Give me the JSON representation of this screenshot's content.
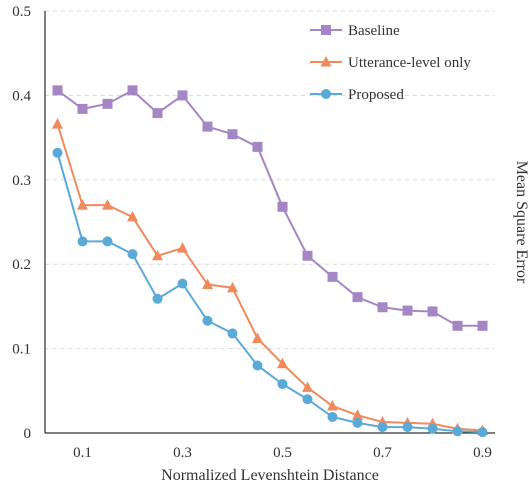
{
  "chart_data": {
    "type": "line",
    "xlabel": "Normalized Levenshtein Distance",
    "ylabel": "Mean Square Error",
    "x": [
      0.05,
      0.1,
      0.15,
      0.2,
      0.25,
      0.3,
      0.35,
      0.4,
      0.45,
      0.5,
      0.55,
      0.6,
      0.65,
      0.7,
      0.75,
      0.8,
      0.85,
      0.9
    ],
    "xlim": [
      0.025,
      0.925
    ],
    "ylim": [
      0,
      0.5
    ],
    "xticks": [
      "0.1",
      "0.3",
      "0.5",
      "0.7",
      "0.9"
    ],
    "xtick_values": [
      0.1,
      0.3,
      0.5,
      0.7,
      0.9
    ],
    "yticks": [
      "0",
      "0.1",
      "0.2",
      "0.3",
      "0.4",
      "0.5"
    ],
    "ytick_values": [
      0,
      0.1,
      0.2,
      0.3,
      0.4,
      0.5
    ],
    "grid": "horizontal dashed",
    "legend_position": "top-right",
    "series": [
      {
        "name": "Baseline",
        "marker": "square",
        "color": "#a586c4",
        "values": [
          0.406,
          0.384,
          0.39,
          0.406,
          0.379,
          0.4,
          0.363,
          0.354,
          0.339,
          0.268,
          0.21,
          0.185,
          0.161,
          0.149,
          0.145,
          0.144,
          0.127,
          0.127
        ]
      },
      {
        "name": "Utterance-level only",
        "marker": "triangle",
        "color": "#f08a5d",
        "values": [
          0.366,
          0.27,
          0.27,
          0.256,
          0.21,
          0.219,
          0.176,
          0.172,
          0.112,
          0.082,
          0.054,
          0.032,
          0.021,
          0.013,
          0.012,
          0.011,
          0.005,
          0.003
        ]
      },
      {
        "name": "Proposed",
        "marker": "circle",
        "color": "#5ba9d6",
        "values": [
          0.332,
          0.227,
          0.227,
          0.212,
          0.159,
          0.177,
          0.133,
          0.118,
          0.08,
          0.058,
          0.04,
          0.019,
          0.012,
          0.007,
          0.007,
          0.005,
          0.002,
          0.001
        ]
      }
    ]
  }
}
